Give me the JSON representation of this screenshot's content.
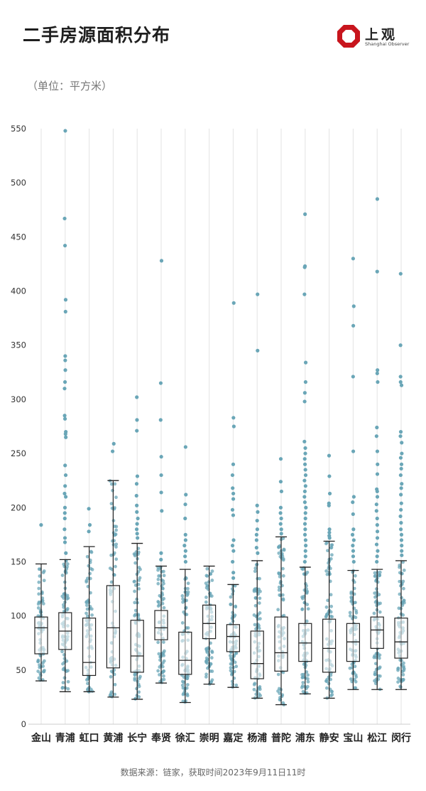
{
  "header": {
    "title": "二手房源面积分布",
    "logo_name": "上观",
    "logo_sub": "Shanghai Observer"
  },
  "unit_label": "（单位：平方米）",
  "source": "数据来源：链家，获取时间2023年9月11日11时",
  "colors": {
    "box": "#222222",
    "points": "#6aa6b7",
    "grid": "#e3e3e3",
    "logo": "#c8151d"
  },
  "chart_data": {
    "type": "box",
    "title": "二手房源面积分布",
    "ylabel": "平方米",
    "ylim": [
      0,
      550
    ],
    "yticks": [
      0,
      50,
      100,
      150,
      200,
      250,
      300,
      350,
      400,
      450,
      500,
      550
    ],
    "categories": [
      "金山",
      "青浦",
      "虹口",
      "黄浦",
      "长宁",
      "奉贤",
      "徐汇",
      "崇明",
      "嘉定",
      "杨浦",
      "普陀",
      "浦东",
      "静安",
      "宝山",
      "松江",
      "闵行"
    ],
    "boxes": [
      {
        "name": "金山",
        "min": 40,
        "q1": 65,
        "median": 89,
        "q3": 99,
        "max": 148,
        "outliers": [
          184
        ]
      },
      {
        "name": "青浦",
        "min": 30,
        "q1": 69,
        "median": 86,
        "q3": 103,
        "max": 152,
        "outliers": [
          548,
          467,
          442,
          392,
          381,
          340,
          336,
          327,
          316,
          310,
          285,
          282,
          270,
          268,
          265,
          239,
          230,
          220,
          213,
          210,
          200,
          195,
          190,
          180,
          172,
          168,
          158
        ]
      },
      {
        "name": "虹口",
        "min": 30,
        "q1": 45,
        "median": 57,
        "q3": 98,
        "max": 164,
        "outliers": [
          199,
          184,
          178
        ]
      },
      {
        "name": "黄浦",
        "min": 25,
        "q1": 52,
        "median": 89,
        "q3": 128,
        "max": 225,
        "outliers": [
          259,
          252
        ]
      },
      {
        "name": "长宁",
        "min": 23,
        "q1": 48,
        "median": 63,
        "q3": 96,
        "max": 167,
        "outliers": [
          302,
          281,
          271,
          229,
          222,
          211,
          202,
          196,
          190,
          185,
          180,
          176,
          172
        ]
      },
      {
        "name": "奉贤",
        "min": 38,
        "q1": 78,
        "median": 89,
        "q3": 105,
        "max": 146,
        "outliers": [
          428,
          315,
          281,
          247,
          230,
          214,
          197,
          158,
          152
        ]
      },
      {
        "name": "徐汇",
        "min": 20,
        "q1": 46,
        "median": 59,
        "q3": 85,
        "max": 143,
        "outliers": [
          256,
          212,
          203,
          190,
          175,
          170,
          165,
          160,
          155,
          150
        ]
      },
      {
        "name": "崇明",
        "min": 37,
        "q1": 79,
        "median": 93,
        "q3": 110,
        "max": 146,
        "outliers": []
      },
      {
        "name": "嘉定",
        "min": 34,
        "q1": 67,
        "median": 81,
        "q3": 92,
        "max": 129,
        "outliers": [
          389,
          283,
          275,
          240,
          230,
          218,
          213,
          208,
          198,
          193,
          170,
          165,
          160,
          150,
          140,
          135
        ]
      },
      {
        "name": "杨浦",
        "min": 24,
        "q1": 42,
        "median": 56,
        "q3": 86,
        "max": 151,
        "outliers": [
          397,
          345,
          202,
          196,
          188,
          180,
          175,
          170,
          163,
          158
        ]
      },
      {
        "name": "普陀",
        "min": 18,
        "q1": 49,
        "median": 66,
        "q3": 99,
        "max": 173,
        "outliers": [
          245,
          224,
          215,
          200,
          195,
          190,
          185,
          180,
          176
        ]
      },
      {
        "name": "浦东",
        "min": 28,
        "q1": 58,
        "median": 75,
        "q3": 93,
        "max": 145,
        "outliers": [
          471,
          423,
          422,
          397,
          334,
          316,
          306,
          298,
          261,
          255,
          250,
          245,
          240,
          235,
          230,
          225,
          220,
          215,
          210,
          205,
          200,
          195,
          190,
          185,
          180,
          175,
          170,
          165,
          160,
          155,
          150
        ]
      },
      {
        "name": "静安",
        "min": 24,
        "q1": 48,
        "median": 70,
        "q3": 97,
        "max": 169,
        "outliers": [
          248,
          229,
          213,
          204,
          202,
          180,
          177,
          174,
          172
        ]
      },
      {
        "name": "宝山",
        "min": 32,
        "q1": 58,
        "median": 76,
        "q3": 93,
        "max": 142,
        "outliers": [
          430,
          386,
          368,
          321,
          252,
          210,
          205,
          194,
          180,
          175,
          170,
          165,
          160,
          155,
          150
        ]
      },
      {
        "name": "松江",
        "min": 32,
        "q1": 70,
        "median": 87,
        "q3": 99,
        "max": 143,
        "outliers": [
          485,
          418,
          327,
          324,
          316,
          274,
          266,
          252,
          240,
          231,
          217,
          215,
          210,
          203,
          197,
          190,
          184,
          178,
          172,
          166,
          160,
          155,
          150
        ]
      },
      {
        "name": "闵行",
        "min": 32,
        "q1": 61,
        "median": 76,
        "q3": 98,
        "max": 151,
        "outliers": [
          416,
          350,
          321,
          316,
          313,
          270,
          266,
          260,
          250,
          246,
          240,
          236,
          230,
          222,
          218,
          212,
          204,
          198,
          192,
          186,
          180,
          175,
          170,
          165,
          160,
          156
        ]
      }
    ]
  }
}
